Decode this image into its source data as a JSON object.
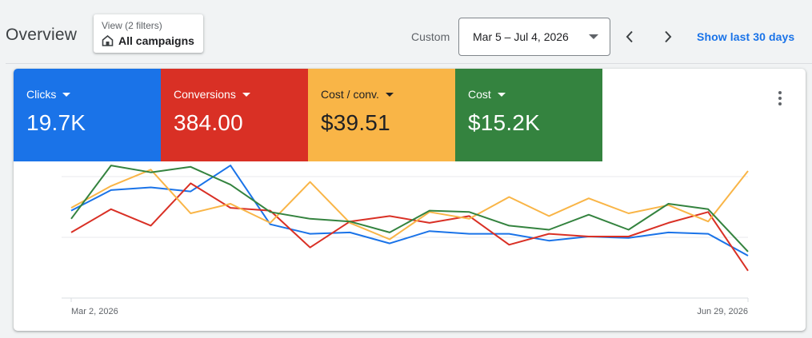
{
  "header": {
    "title": "Overview",
    "view_chip": {
      "caption": "View (2 filters)",
      "label": "All campaigns",
      "icon": "store-icon"
    },
    "custom_label": "Custom",
    "date_range": "Mar 5 – Jul 4, 2026",
    "prev_icon": "chevron-left-icon",
    "next_icon": "chevron-right-icon",
    "show_last_link": "Show last 30 days"
  },
  "metrics": [
    {
      "name": "Clicks",
      "value": "19.7K",
      "color": "#1a73e8"
    },
    {
      "name": "Conversions",
      "value": "384.00",
      "color": "#d93025"
    },
    {
      "name": "Cost / conv.",
      "value": "$39.51",
      "color": "#f9b547"
    },
    {
      "name": "Cost",
      "value": "$15.2K",
      "color": "#34833f"
    }
  ],
  "chart_data": {
    "type": "line",
    "x_tick_labels": [
      "Mar 2, 2026",
      "Jun 29, 2026"
    ],
    "points_per_series": 18,
    "grid": true,
    "y_range": [
      0,
      100
    ],
    "series": [
      {
        "metric": "Clicks",
        "color": "#1a73e8",
        "values": [
          64,
          79,
          81,
          78,
          97,
          54,
          47,
          48,
          40,
          49,
          47,
          47,
          42,
          45,
          44,
          48,
          47,
          31
        ]
      },
      {
        "metric": "Conversions",
        "color": "#d93025",
        "values": [
          48,
          65,
          53,
          84,
          66,
          64,
          37,
          56,
          60,
          55,
          60,
          39,
          47,
          45,
          45,
          55,
          63,
          20
        ]
      },
      {
        "metric": "Cost / conv.",
        "color": "#f9b547",
        "values": [
          66,
          82,
          94,
          62,
          69,
          55,
          85,
          55,
          43,
          63,
          58,
          74,
          60,
          73,
          62,
          68,
          56,
          93
        ]
      },
      {
        "metric": "Cost",
        "color": "#34833f",
        "values": [
          58,
          97,
          92,
          96,
          83,
          63,
          58,
          56,
          48,
          64,
          63,
          53,
          50,
          61,
          50,
          69,
          65,
          34
        ]
      }
    ]
  }
}
